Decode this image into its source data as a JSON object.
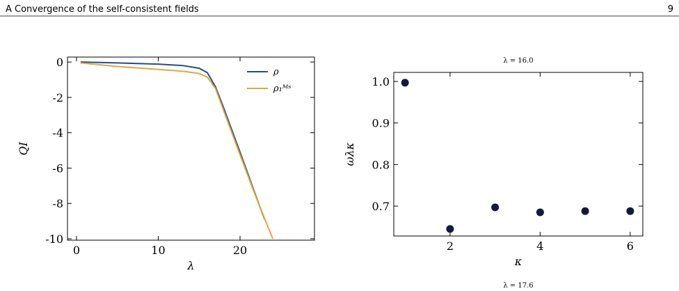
{
  "header": {
    "title": "A Convergence of the self-consistent fields",
    "page": "9"
  },
  "chart_data": [
    {
      "type": "line",
      "xlabel": "λ",
      "ylabel": "QI",
      "x": [
        0.5,
        5,
        10,
        13,
        15,
        16,
        17,
        18,
        20,
        22,
        23,
        24
      ],
      "series": [
        {
          "name": "ρ",
          "color": "#1f4e8c",
          "values": [
            0,
            -0.05,
            -0.12,
            -0.2,
            -0.35,
            -0.6,
            -1.4,
            -2.6,
            -5.1,
            -7.65,
            -8.9,
            null
          ]
        },
        {
          "name": "ρ₁ᴹˢ",
          "color": "#e0a83a",
          "values": [
            -0.05,
            -0.25,
            -0.42,
            -0.52,
            -0.65,
            -0.85,
            -1.5,
            -2.75,
            -5.25,
            -7.7,
            -8.85,
            -10
          ]
        }
      ],
      "xlim": [
        -1.1,
        29.1
      ],
      "xticks": [
        0,
        10,
        20
      ],
      "ylim": [
        -10.08,
        0.28
      ],
      "yticks": [
        0,
        -2,
        -4,
        -6,
        -8,
        -10
      ],
      "legend": "upper right"
    },
    {
      "type": "scatter",
      "title": "λ = 16.0",
      "xlabel": "κ",
      "ylabel": "ωλκ",
      "x": [
        1,
        2,
        3,
        4,
        5,
        6
      ],
      "values": [
        0.997,
        0.645,
        0.697,
        0.685,
        0.688,
        0.688
      ],
      "color": "#14183a",
      "xlim": [
        0.75,
        6.28
      ],
      "xticks": [
        2,
        4,
        6
      ],
      "ylim": [
        0.628,
        1.0218
      ],
      "yticks": [
        0.7,
        0.8,
        0.9,
        {
          "value": 1.0,
          "label": "1.0"
        }
      ]
    }
  ],
  "next_title": "λ = 17.6"
}
